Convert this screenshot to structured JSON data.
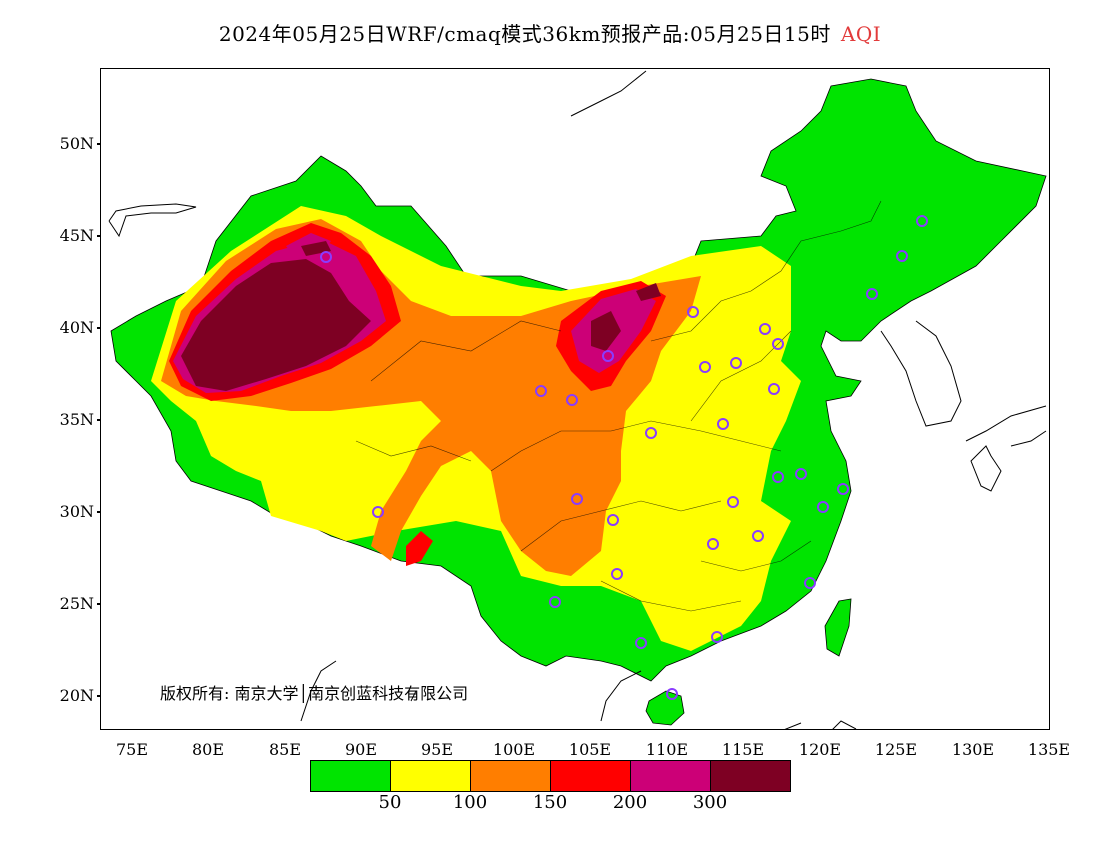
{
  "title": {
    "text": "2024年05月25日WRF/cmaq模式36km预报产品:05月25日15时",
    "product": "AQI",
    "product_color": "#e23b3b"
  },
  "map": {
    "y_ticks": [
      "50N",
      "45N",
      "40N",
      "35N",
      "30N",
      "25N",
      "20N"
    ],
    "x_ticks": [
      "75E",
      "80E",
      "85E",
      "90E",
      "95E",
      "100E",
      "105E",
      "110E",
      "115E",
      "120E",
      "125E",
      "130E",
      "135E"
    ],
    "copyright": "版权所有: 南京大学│南京创蓝科技有限公司",
    "station_marker_color": "#8a3cff"
  },
  "legend": {
    "colors": [
      "#00e400",
      "#ffff00",
      "#ff7e00",
      "#ff0000",
      "#cc0077",
      "#7e0023"
    ],
    "labels": [
      "50",
      "100",
      "150",
      "200",
      "300"
    ]
  }
}
